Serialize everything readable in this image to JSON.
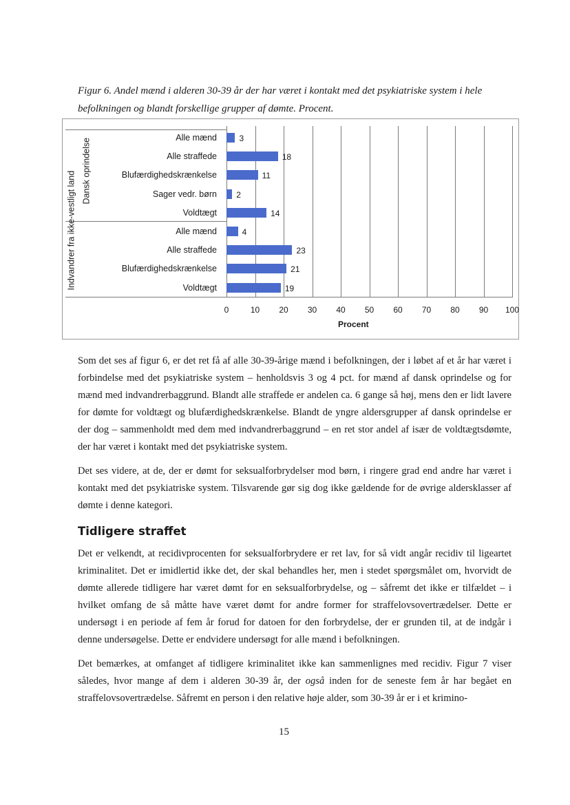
{
  "figure": {
    "caption": "Figur 6. Andel mænd i alderen 30-39 år der har været i kontakt med det psykiatriske system i hele befolkningen og blandt forskellige grupper af dømte. Procent."
  },
  "chart_data": {
    "type": "bar",
    "orientation": "horizontal",
    "xlabel": "Procent",
    "xlim": [
      0,
      100
    ],
    "xticks": [
      "0",
      "10",
      "20",
      "30",
      "40",
      "50",
      "60",
      "70",
      "80",
      "90",
      "100"
    ],
    "grid": true,
    "bar_color": "#4a6bcb",
    "groups": [
      {
        "name": "Dansk oprindelse",
        "categories": [
          "Alle mænd",
          "Alle straffede",
          "Blufærdighedskrænkelse",
          "Sager vedr. børn",
          "Voldtægt"
        ],
        "values": [
          3,
          18,
          11,
          2,
          14
        ]
      },
      {
        "name": "Indvandrer fra ikke-vestligt land",
        "categories": [
          "Alle mænd",
          "Alle straffede",
          "Blufærdighedskrænkelse",
          "Voldtægt"
        ],
        "values": [
          4,
          23,
          21,
          19
        ]
      }
    ]
  },
  "body": {
    "para1": "Som det ses af figur 6, er det ret få af alle 30-39-årige mænd i befolkningen, der i løbet af et år har været i forbindelse med det psykiatriske system – henholdsvis 3 og 4 pct. for mænd af dansk oprin­delse og for mænd med indvandrerbaggrund. Blandt alle straffede er andelen ca. 6 gange så høj, mens den er lidt lavere for dømte for voldtægt og blufærdighedskrænkelse. Blandt de yngre alders­grupper af dansk oprindelse er der dog – sammenholdt med dem med indvandrerbaggrund – en ret stor andel af især de voldtægtsdømte, der har været i kontakt med det psykiatriske system.",
    "para2": "Det ses videre, at de, der er dømt for seksualforbrydelser mod børn, i ringere grad end andre har været i kontakt med det psykiatriske system. Tilsvarende gør sig dog ikke gældende for de øvrige aldersklasser af dømte i denne kategori.",
    "heading": "Tidligere straffet",
    "para3": "Det er velkendt, at recidivprocenten for seksualforbrydere er ret lav, for så vidt angår recidiv til li­geartet kriminalitet. Det er imidlertid ikke det, der skal behandles her, men i stedet spørgsmålet om, hvorvidt de dømte allerede tidligere har været dømt for en seksualforbrydelse, og – såfremt det ikke er tilfældet – i hvilket omfang de så måtte have været dømt for andre former for straffelovsovertræ­delser. Dette er undersøgt i en periode af fem år forud for datoen for den forbrydelse, der er grunden til, at de indgår i denne undersøgelse. Dette er endvidere undersøgt for alle mænd i befolkningen.",
    "para4_a": "Det bemærkes, at omfanget af tidligere kriminalitet ikke kan sammenlignes med recidiv. Figur 7 viser således, hvor mange af dem i alderen 30-39 år, der ",
    "para4_em": "også",
    "para4_b": " inden for de seneste fem år har begået en straffelovsovertrædelse. Såfremt en person i den relative høje alder, som 30-39 år er i et krimino-"
  },
  "page_number": "15"
}
